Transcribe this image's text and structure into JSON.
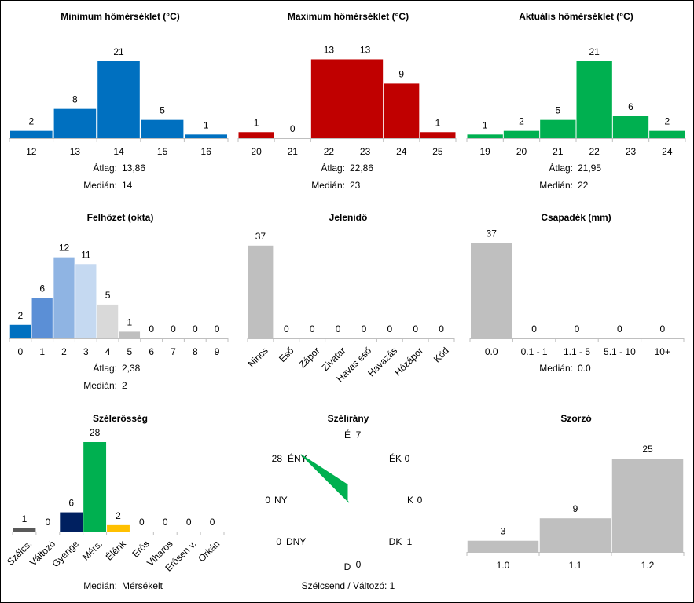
{
  "charts": [
    {
      "id": "min",
      "type": "bar",
      "title": "Minimum hőmérséklet (°C)",
      "categories": [
        "12",
        "13",
        "14",
        "15",
        "16"
      ],
      "values": [
        2,
        8,
        21,
        5,
        1
      ],
      "colors": [
        "#0070c0",
        "#0070c0",
        "#0070c0",
        "#0070c0",
        "#0070c0"
      ],
      "ymax": 24,
      "stats": [
        {
          "label": "Átlag:",
          "value": "13,86"
        },
        {
          "label": "Medián:",
          "value": "14"
        }
      ]
    },
    {
      "id": "max",
      "type": "bar",
      "title": "Maximum hőmérséklet (°C)",
      "categories": [
        "20",
        "21",
        "22",
        "23",
        "24",
        "25"
      ],
      "values": [
        1,
        0,
        13,
        13,
        9,
        1
      ],
      "colors": [
        "#c00000",
        "#c00000",
        "#c00000",
        "#c00000",
        "#c00000",
        "#c00000"
      ],
      "ymax": 15,
      "stats": [
        {
          "label": "Átlag:",
          "value": "22,86"
        },
        {
          "label": "Medián:",
          "value": "23"
        }
      ]
    },
    {
      "id": "act",
      "type": "bar",
      "title": "Aktuális hőmérséklet (°C)",
      "categories": [
        "19",
        "20",
        "21",
        "22",
        "23",
        "24"
      ],
      "values": [
        1,
        2,
        5,
        21,
        6,
        2
      ],
      "colors": [
        "#00b050",
        "#00b050",
        "#00b050",
        "#00b050",
        "#00b050",
        "#00b050"
      ],
      "ymax": 24,
      "stats": [
        {
          "label": "Átlag:",
          "value": "21,95"
        },
        {
          "label": "Medián:",
          "value": "22"
        }
      ]
    },
    {
      "id": "cloud",
      "type": "bar",
      "title": "Felhőzet (okta)",
      "categories": [
        "0",
        "1",
        "2",
        "3",
        "4",
        "5",
        "6",
        "7",
        "8",
        "9"
      ],
      "values": [
        2,
        6,
        12,
        11,
        5,
        1,
        0,
        0,
        0,
        0
      ],
      "colors": [
        "#0070c0",
        "#5b8fd6",
        "#8fb4e3",
        "#c5d9f1",
        "#d9d9d9",
        "#bfbfbf",
        "#bfbfbf",
        "#bfbfbf",
        "#bfbfbf",
        "#bfbfbf"
      ],
      "ymax": 13.7,
      "stats": [
        {
          "label": "Átlag:",
          "value": "2,38"
        },
        {
          "label": "Medián:",
          "value": "2"
        }
      ]
    },
    {
      "id": "wx",
      "type": "bar",
      "title": "Jelenidő",
      "categories": [
        "Nincs",
        "Eső",
        "Zápor",
        "Zivatar",
        "Havas eső",
        "Havazás",
        "Hózápor",
        "Köd"
      ],
      "values": [
        37,
        0,
        0,
        0,
        0,
        0,
        0,
        0
      ],
      "colors": [
        "#bfbfbf",
        "#bfbfbf",
        "#bfbfbf",
        "#bfbfbf",
        "#bfbfbf",
        "#bfbfbf",
        "#bfbfbf",
        "#bfbfbf"
      ],
      "ymax": 38.5,
      "stats": []
    },
    {
      "id": "precip",
      "type": "bar",
      "title": "Csapadék (mm)",
      "categories": [
        "0.0",
        "0.1 - 1",
        "1.1 - 5",
        "5.1 - 10",
        "10+"
      ],
      "values": [
        37,
        0,
        0,
        0,
        0
      ],
      "colors": [
        "#bfbfbf",
        "#bfbfbf",
        "#bfbfbf",
        "#bfbfbf",
        "#bfbfbf"
      ],
      "ymax": 37.4,
      "stats": [
        {
          "label": "Medián:",
          "value": "0.0"
        }
      ]
    },
    {
      "id": "wind",
      "type": "bar",
      "title": "Szélerősség",
      "categories": [
        "Szélcs.",
        "Változó",
        "Gyenge",
        "Mérs.",
        "Élénk",
        "Erős",
        "Viharos",
        "Erősen v.",
        "Orkán"
      ],
      "values": [
        1,
        0,
        6,
        28,
        2,
        0,
        0,
        0,
        0
      ],
      "colors": [
        "#595959",
        "#bfbfbf",
        "#002060",
        "#00b050",
        "#ffc000",
        "#bfbfbf",
        "#bfbfbf",
        "#bfbfbf",
        "#bfbfbf"
      ],
      "ymax": 28,
      "stats": [
        {
          "label": "Medián:",
          "value": "Mérsékelt"
        }
      ]
    },
    {
      "id": "mult",
      "type": "bar",
      "title": "Szorzó",
      "categories": [
        "1.0",
        "1.1",
        "1.2"
      ],
      "values": [
        3,
        9,
        25
      ],
      "colors": [
        "#bfbfbf",
        "#bfbfbf",
        "#bfbfbf"
      ],
      "ymax": 26.5,
      "stats": []
    }
  ],
  "chart_data": {
    "type": "radar",
    "title": "Szélirány",
    "directions": [
      {
        "label": "É",
        "value": 7
      },
      {
        "label": "ÉK",
        "value": 0
      },
      {
        "label": "K",
        "value": 0
      },
      {
        "label": "DK",
        "value": 1
      },
      {
        "label": "D",
        "value": 0
      },
      {
        "label": "DNY",
        "value": 0
      },
      {
        "label": "NY",
        "value": 0
      },
      {
        "label": "ÉNY",
        "value": 28
      }
    ],
    "color": "#00b050",
    "footer": "Szélcsend / Változó: 1"
  }
}
